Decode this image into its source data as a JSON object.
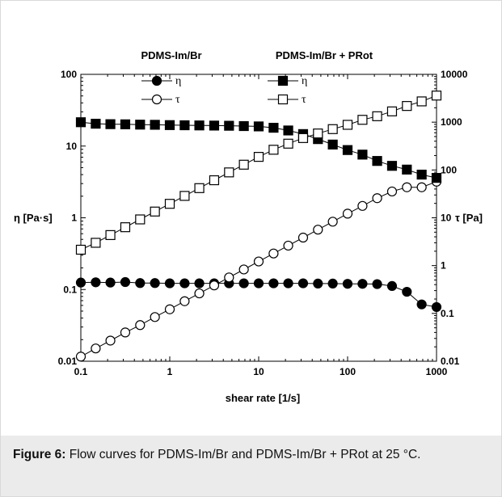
{
  "chart_data": {
    "type": "scatter",
    "xlabel": "shear rate [1/s]",
    "ylabel_left": "η [Pa·s]",
    "ylabel_right": "τ [Pa]",
    "x_scale": "log",
    "y_left_scale": "log",
    "y_right_scale": "log",
    "xlim": [
      0.1,
      1000
    ],
    "ylim_left": [
      0.01,
      100
    ],
    "ylim_right": [
      0.01,
      10000
    ],
    "x_ticks": [
      "0.1",
      "1",
      "10",
      "100",
      "1000"
    ],
    "y_left_ticks": [
      "0.01",
      "0.1",
      "1",
      "10",
      "100"
    ],
    "y_right_ticks": [
      "0.01",
      "0.1",
      "1",
      "10",
      "100",
      "1000",
      "10000"
    ],
    "groups": [
      "PDMS-Im/Br",
      "PDMS-Im/Br + PRot"
    ],
    "x": [
      0.1,
      0.147,
      0.215,
      0.316,
      0.464,
      0.681,
      1,
      1.47,
      2.15,
      3.16,
      4.64,
      6.81,
      10,
      14.7,
      21.5,
      31.6,
      46.4,
      68.1,
      100,
      147,
      215,
      316,
      464,
      681,
      1000
    ],
    "series": [
      {
        "name": "η",
        "group": "PDMS-Im/Br",
        "axis": "left",
        "marker": "filled-circle",
        "values": [
          0.125,
          0.126,
          0.125,
          0.127,
          0.123,
          0.123,
          0.122,
          0.122,
          0.122,
          0.122,
          0.122,
          0.122,
          0.122,
          0.122,
          0.122,
          0.122,
          0.121,
          0.121,
          0.12,
          0.12,
          0.119,
          0.112,
          0.093,
          0.062,
          0.057
        ]
      },
      {
        "name": "τ",
        "group": "PDMS-Im/Br",
        "axis": "right",
        "marker": "open-circle",
        "values": [
          0.0125,
          0.0185,
          0.027,
          0.04,
          0.057,
          0.084,
          0.122,
          0.18,
          0.262,
          0.385,
          0.565,
          0.83,
          1.22,
          1.79,
          2.62,
          3.85,
          5.65,
          8.3,
          12.2,
          17.7,
          25.7,
          35.5,
          43.5,
          43.5,
          57
        ]
      },
      {
        "name": "η",
        "group": "PDMS-Im/Br + PRot",
        "axis": "left",
        "marker": "filled-square",
        "values": [
          21.5,
          20.5,
          20.2,
          20.1,
          19.9,
          19.8,
          19.6,
          19.5,
          19.4,
          19.3,
          19.2,
          19.0,
          18.8,
          18.0,
          16.5,
          14.7,
          12.5,
          10.5,
          8.8,
          7.6,
          6.2,
          5.3,
          4.7,
          4.0,
          3.6
        ]
      },
      {
        "name": "τ",
        "group": "PDMS-Im/Br + PRot",
        "axis": "right",
        "marker": "open-square",
        "values": [
          2.15,
          3.0,
          4.35,
          6.35,
          9.25,
          13.5,
          19.6,
          28.7,
          41.7,
          61,
          89,
          129,
          188,
          265,
          355,
          465,
          580,
          715,
          880,
          1120,
          1330,
          1680,
          2180,
          2720,
          3600
        ]
      }
    ]
  },
  "caption": {
    "label": "Figure 6:",
    "text": " Flow curves for PDMS-Im/Br and PDMS-Im/Br + PRot at 25 °C."
  }
}
